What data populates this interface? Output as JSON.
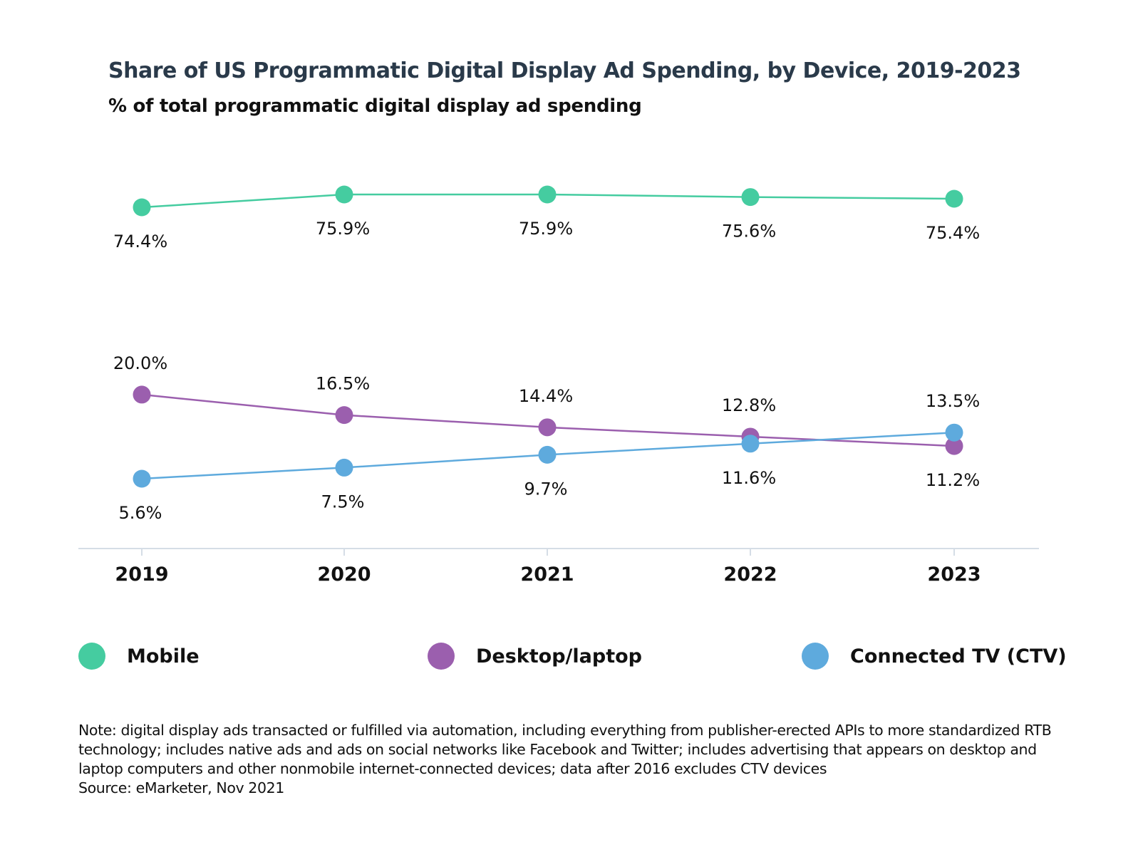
{
  "chart_data": {
    "type": "line",
    "title": "Share of US Programmatic Digital Display Ad Spending, by Device, 2019-2023",
    "subtitle": "% of total programmatic digital display ad spending",
    "categories": [
      "2019",
      "2020",
      "2021",
      "2022",
      "2023"
    ],
    "series": [
      {
        "name": "Mobile",
        "color": "#45cca0",
        "values": [
          74.4,
          75.9,
          75.9,
          75.6,
          75.4
        ],
        "labels": [
          "74.4%",
          "75.9%",
          "75.9%",
          "75.6%",
          "75.4%"
        ]
      },
      {
        "name": "Desktop/laptop",
        "color": "#9b5fae",
        "values": [
          20.0,
          16.5,
          14.4,
          12.8,
          11.2
        ],
        "labels": [
          "20.0%",
          "16.5%",
          "14.4%",
          "12.8%",
          "11.2%"
        ]
      },
      {
        "name": "Connected TV (CTV)",
        "color": "#5eaadd",
        "values": [
          5.6,
          7.5,
          9.7,
          11.6,
          13.5
        ],
        "labels": [
          "5.6%",
          "7.5%",
          "9.7%",
          "11.6%",
          "13.5%"
        ]
      }
    ],
    "axis_break": true,
    "grid": false,
    "legend_placement": "bottom"
  },
  "note": "Note: digital display ads transacted or fulfilled via automation, including everything from publisher-erected APIs to more standardized RTB technology; includes native ads and ads on social networks like Facebook and Twitter; includes advertising that appears on desktop and laptop computers and other nonmobile internet-connected devices; data after 2016 excludes CTV devices",
  "source": "Source: eMarketer, Nov 2021"
}
